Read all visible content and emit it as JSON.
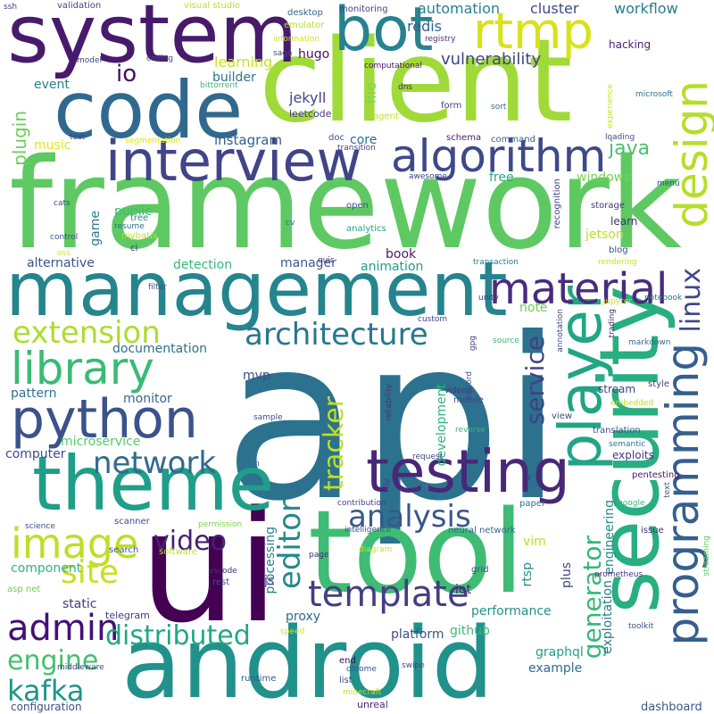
{
  "words": [
    {
      "text": "api",
      "color": "#2c728e"
    },
    {
      "text": "framework",
      "color": "#5ec962"
    },
    {
      "text": "client",
      "color": "#a0da39"
    },
    {
      "text": "ui",
      "color": "#440154"
    },
    {
      "text": "tool",
      "color": "#3fbc73"
    },
    {
      "text": "android",
      "color": "#21918c"
    },
    {
      "text": "system",
      "color": "#481a6c"
    },
    {
      "text": "management",
      "color": "#25848e"
    },
    {
      "text": "code",
      "color": "#31688e"
    },
    {
      "text": "theme",
      "color": "#1f9e89"
    },
    {
      "text": "security",
      "color": "#28ae80"
    },
    {
      "text": "interview",
      "color": "#414487"
    },
    {
      "text": "python",
      "color": "#3b528b"
    },
    {
      "text": "testing",
      "color": "#482878"
    },
    {
      "text": "algorithm",
      "color": "#3e4989"
    },
    {
      "text": "bot",
      "color": "#26828e"
    },
    {
      "text": "rtmp",
      "color": "#d8e219"
    },
    {
      "text": "player",
      "color": "#21a585"
    },
    {
      "text": "programming",
      "color": "#355f8d"
    },
    {
      "text": "design",
      "color": "#b5de2b"
    },
    {
      "text": "material",
      "color": "#472d7b"
    },
    {
      "text": "library",
      "color": "#3aba76"
    },
    {
      "text": "image",
      "color": "#bddf26"
    },
    {
      "text": "architecture",
      "color": "#2a768e"
    },
    {
      "text": "template",
      "color": "#433e85"
    },
    {
      "text": "analysis",
      "color": "#38588c"
    },
    {
      "text": "network",
      "color": "#306a8e"
    },
    {
      "text": "admin",
      "color": "#440f76"
    },
    {
      "text": "extension",
      "color": "#addc30"
    },
    {
      "text": "distributed",
      "color": "#22a884"
    },
    {
      "text": "linux",
      "color": "#3f4788"
    },
    {
      "text": "site",
      "color": "#c8e020"
    },
    {
      "text": "editor",
      "color": "#24878e"
    },
    {
      "text": "engine",
      "color": "#44bf70"
    },
    {
      "text": "kafka",
      "color": "#1f958b"
    },
    {
      "text": "service",
      "color": "#424086"
    },
    {
      "text": "video",
      "color": "#482173"
    },
    {
      "text": "tracker",
      "color": "#c2df23"
    },
    {
      "text": "generator",
      "color": "#35b779"
    },
    {
      "text": "java",
      "color": "#4ac16d"
    },
    {
      "text": "io",
      "color": "#460b5e"
    },
    {
      "text": "plugin",
      "color": "#6ccd5a"
    },
    {
      "text": "instagram",
      "color": "#365c8d"
    },
    {
      "text": "vulnerability",
      "color": "#414487"
    },
    {
      "text": "automation",
      "color": "#26818e"
    },
    {
      "text": "workflow",
      "color": "#297b8e"
    },
    {
      "text": "cluster",
      "color": "#3e4a89"
    },
    {
      "text": "redis",
      "color": "#33638d"
    },
    {
      "text": "hugo",
      "color": "#471164"
    },
    {
      "text": "jekyll",
      "color": "#404688"
    },
    {
      "text": "leetcode",
      "color": "#453781"
    },
    {
      "text": "builder",
      "color": "#2b748e"
    },
    {
      "text": "learning",
      "color": "#cae11f"
    },
    {
      "text": "event",
      "color": "#287d8e"
    },
    {
      "text": "music",
      "color": "#e2e418"
    },
    {
      "text": "file",
      "color": "#7fd34e"
    },
    {
      "text": "core",
      "color": "#2e6e8e"
    },
    {
      "text": "book",
      "color": "#481769"
    },
    {
      "text": "free",
      "color": "#25ac82"
    },
    {
      "text": "windows",
      "color": "#7ad151"
    },
    {
      "text": "public",
      "color": "#3dbc74"
    },
    {
      "text": "game",
      "color": "#297a8e"
    },
    {
      "text": "jetson",
      "color": "#bade28"
    },
    {
      "text": "learn",
      "color": "#472c7a"
    },
    {
      "text": "alternative",
      "color": "#3b528b"
    },
    {
      "text": "detection",
      "color": "#37b878"
    },
    {
      "text": "manager",
      "color": "#38598c"
    },
    {
      "text": "animation",
      "color": "#1fa088"
    },
    {
      "text": "documentation",
      "color": "#2d708e"
    },
    {
      "text": "monitor",
      "color": "#32658e"
    },
    {
      "text": "microservice",
      "color": "#5ac864"
    },
    {
      "text": "pattern",
      "color": "#2d718e"
    },
    {
      "text": "computer",
      "color": "#3e4989"
    },
    {
      "text": "mvp",
      "color": "#3e4c8a"
    },
    {
      "text": "note",
      "color": "#6ece58"
    },
    {
      "text": "development",
      "color": "#2fb47c"
    },
    {
      "text": "component",
      "color": "#2db27d"
    },
    {
      "text": "static",
      "color": "#443983"
    },
    {
      "text": "platform",
      "color": "#3c508b"
    },
    {
      "text": "github",
      "color": "#3bbb75"
    },
    {
      "text": "performance",
      "color": "#20928c"
    },
    {
      "text": "processing",
      "color": "#277f8e"
    },
    {
      "text": "proxy",
      "color": "#2f6b8e"
    },
    {
      "text": "vim",
      "color": "#b5de2b"
    },
    {
      "text": "rtsp",
      "color": "#23898e"
    },
    {
      "text": "plus",
      "color": "#414487"
    },
    {
      "text": "graphql",
      "color": "#1f9f88"
    },
    {
      "text": "example",
      "color": "#306a8e"
    },
    {
      "text": "exploitation",
      "color": "#2a788e"
    },
    {
      "text": "engineering",
      "color": "#23898e"
    },
    {
      "text": "stream",
      "color": "#404588"
    },
    {
      "text": "iot",
      "color": "#482475"
    },
    {
      "text": "js",
      "color": "#3e4a89"
    },
    {
      "text": "dashboard",
      "color": "#38598c"
    },
    {
      "text": "configuration",
      "color": "#3c4f8a"
    },
    {
      "text": "telegram",
      "color": "#453882"
    },
    {
      "text": "unreal",
      "color": "#482878"
    },
    {
      "text": "ssh",
      "color": "#424186"
    },
    {
      "text": "validation",
      "color": "#404387"
    },
    {
      "text": "visual studio",
      "color": "#c0df25"
    },
    {
      "text": "desktop",
      "color": "#33638d"
    },
    {
      "text": "monitoring",
      "color": "#424186"
    },
    {
      "text": "emulator",
      "color": "#bade28"
    },
    {
      "text": "information",
      "color": "#d2e21b"
    },
    {
      "text": "registry",
      "color": "#46307e"
    },
    {
      "text": "saga",
      "color": "#3c4f8a"
    },
    {
      "text": "computational",
      "color": "#471063"
    },
    {
      "text": "model",
      "color": "#414487"
    },
    {
      "text": "coding",
      "color": "#404588"
    },
    {
      "text": "bittorrent",
      "color": "#38b977"
    },
    {
      "text": "hacking",
      "color": "#482475"
    },
    {
      "text": "microsoft",
      "color": "#2c728e"
    },
    {
      "text": "experience",
      "color": "#cde11d"
    },
    {
      "text": "dns",
      "color": "#482475"
    },
    {
      "text": "agent",
      "color": "#c2df23"
    },
    {
      "text": "form",
      "color": "#424186"
    },
    {
      "text": "sort",
      "color": "#2e6f8e"
    },
    {
      "text": "test",
      "color": "#404588"
    },
    {
      "text": "segmentation",
      "color": "#d8e219"
    },
    {
      "text": "doc",
      "color": "#3b528b"
    },
    {
      "text": "transition",
      "color": "#433e85"
    },
    {
      "text": "schema",
      "color": "#481b6d"
    },
    {
      "text": "command",
      "color": "#355f8d"
    },
    {
      "text": "loading",
      "color": "#3e4989"
    },
    {
      "text": "awesome",
      "color": "#424086"
    },
    {
      "text": "menu",
      "color": "#3e4989"
    },
    {
      "text": "cats",
      "color": "#3f4788"
    },
    {
      "text": "tree",
      "color": "#23898e"
    },
    {
      "text": "resume",
      "color": "#2d718e"
    },
    {
      "text": "mybatis",
      "color": "#c2df23"
    },
    {
      "text": "recognition",
      "color": "#424086"
    },
    {
      "text": "storage",
      "color": "#46337f"
    },
    {
      "text": "open",
      "color": "#3e4c8a"
    },
    {
      "text": "cv",
      "color": "#31688e"
    },
    {
      "text": "analytics",
      "color": "#22a884"
    },
    {
      "text": "blog",
      "color": "#3c508b"
    },
    {
      "text": "control",
      "color": "#3c4f8a"
    },
    {
      "text": "ci",
      "color": "#482475"
    },
    {
      "text": "oss",
      "color": "#e2e418"
    },
    {
      "text": "quic",
      "color": "#472c7a"
    },
    {
      "text": "transaction",
      "color": "#287c8e"
    },
    {
      "text": "rendering",
      "color": "#cde11d"
    },
    {
      "text": "filter",
      "color": "#3b528b"
    },
    {
      "text": "notebook",
      "color": "#2c728e"
    },
    {
      "text": "jupyter",
      "color": "#d0e11c"
    },
    {
      "text": "custom",
      "color": "#433e85"
    },
    {
      "text": "unity",
      "color": "#453882"
    },
    {
      "text": "trading",
      "color": "#482677"
    },
    {
      "text": "markdown",
      "color": "#31678e"
    },
    {
      "text": "gpg",
      "color": "#453882"
    },
    {
      "text": "annotation",
      "color": "#3e4a89"
    },
    {
      "text": "source",
      "color": "#38b977"
    },
    {
      "text": "discord",
      "color": "#3b518b"
    },
    {
      "text": "videojs",
      "color": "#472f7d"
    },
    {
      "text": "reliability",
      "color": "#46327e"
    },
    {
      "text": "sample",
      "color": "#3d4e8a"
    },
    {
      "text": "mobile",
      "color": "#424186"
    },
    {
      "text": "embedded",
      "color": "#bade28"
    },
    {
      "text": "reverse",
      "color": "#35b779"
    },
    {
      "text": "view",
      "color": "#3f4889"
    },
    {
      "text": "translation",
      "color": "#3a548c"
    },
    {
      "text": "semantic",
      "color": "#2a788e"
    },
    {
      "text": "style",
      "color": "#404588"
    },
    {
      "text": "exploits",
      "color": "#443983"
    },
    {
      "text": "icon",
      "color": "#2b748e"
    },
    {
      "text": "request",
      "color": "#3f4788"
    },
    {
      "text": "flv",
      "color": "#433e85"
    },
    {
      "text": "qr",
      "color": "#46307e"
    },
    {
      "text": "pentesting",
      "color": "#481769"
    },
    {
      "text": "text",
      "color": "#38598c"
    },
    {
      "text": "google",
      "color": "#37b878"
    },
    {
      "text": "contribution",
      "color": "#423f85"
    },
    {
      "text": "paper",
      "color": "#2e6e8e"
    },
    {
      "text": "intelligence",
      "color": "#3b528b"
    },
    {
      "text": "neural network",
      "color": "#31688e"
    },
    {
      "text": "issue",
      "color": "#472c7a"
    },
    {
      "text": "streaming",
      "color": "#5ec962"
    },
    {
      "text": "science",
      "color": "#3d4e8a"
    },
    {
      "text": "scanner",
      "color": "#3e4989"
    },
    {
      "text": "permission",
      "color": "#7ad151"
    },
    {
      "text": "search",
      "color": "#3c508b"
    },
    {
      "text": "software",
      "color": "#bddf26"
    },
    {
      "text": "vscode",
      "color": "#46307e"
    },
    {
      "text": "rest",
      "color": "#3c508b"
    },
    {
      "text": "page",
      "color": "#472c7a"
    },
    {
      "text": "diagram",
      "color": "#cde11d"
    },
    {
      "text": "grid",
      "color": "#3f4889"
    },
    {
      "text": "prometheus",
      "color": "#472f7d"
    },
    {
      "text": "asp net",
      "color": "#6ece58"
    },
    {
      "text": "speed",
      "color": "#d8e219"
    },
    {
      "text": "middleware",
      "color": "#414487"
    },
    {
      "text": "end",
      "color": "#440154"
    },
    {
      "text": "chrome",
      "color": "#3b528b"
    },
    {
      "text": "swipe",
      "color": "#3e4a89"
    },
    {
      "text": "runtime",
      "color": "#38598c"
    },
    {
      "text": "list",
      "color": "#3e4c8a"
    },
    {
      "text": "minecraft",
      "color": "#c2df23"
    },
    {
      "text": "toolkit",
      "color": "#3d4e8a"
    }
  ]
}
